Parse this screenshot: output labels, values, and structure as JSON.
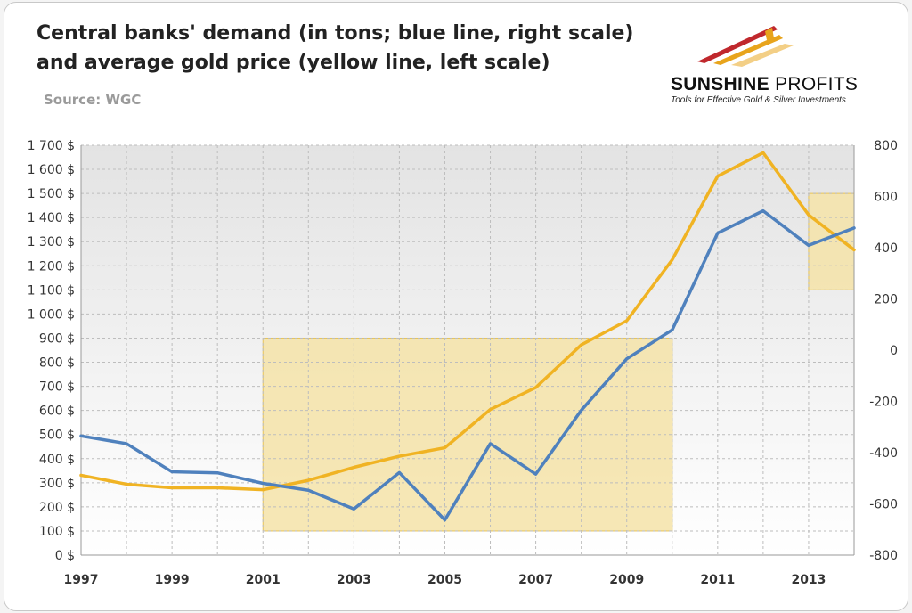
{
  "title_lines": [
    "Central banks' demand (in tons;  blue line, right scale)",
    "and average gold price (yellow line, left scale)"
  ],
  "source": "Source: WGC",
  "logo": {
    "brand_part1": "SUNSHINE",
    "brand_part2": "PROFITS",
    "tagline": "Tools for Effective Gold & Silver Investments",
    "colors": {
      "red": "#c0282d",
      "gold": "#e8a41c",
      "light": "#f3cf86"
    }
  },
  "chart_data": {
    "type": "line",
    "title": "Central banks' demand (in tons; blue line, right scale) and average gold price (yellow line, left scale)",
    "x": [
      1997,
      1998,
      1999,
      2000,
      2001,
      2002,
      2003,
      2004,
      2005,
      2006,
      2007,
      2008,
      2009,
      2010,
      2011,
      2012,
      2013,
      2014
    ],
    "x_tick_labels": [
      "1997",
      "1999",
      "2001",
      "2003",
      "2005",
      "2007",
      "2009",
      "2011",
      "2013"
    ],
    "left_axis": {
      "ylim": [
        0,
        1700
      ],
      "tick_labels": [
        "0 $",
        "100 $",
        "200 $",
        "300 $",
        "400 $",
        "500 $",
        "600 $",
        "700 $",
        "800 $",
        "900 $",
        "1 000 $",
        "1 100 $",
        "1 200 $",
        "1 300 $",
        "1 400 $",
        "1 500 $",
        "1 600 $",
        "1 700 $"
      ]
    },
    "right_axis": {
      "ylim": [
        -800,
        800
      ],
      "tick_labels": [
        "-800",
        "-600",
        "-400",
        "-200",
        "0",
        "200",
        "400",
        "600",
        "800"
      ]
    },
    "series": [
      {
        "name": "Average gold price",
        "axis": "left",
        "color": "#f0b323",
        "values": [
          331,
          294,
          279,
          279,
          271,
          310,
          364,
          410,
          445,
          604,
          695,
          872,
          972,
          1225,
          1572,
          1669,
          1411,
          1266
        ]
      },
      {
        "name": "Central banks' demand",
        "axis": "right",
        "color": "#4f81bd",
        "values": [
          -335,
          -365,
          -475,
          -479,
          -520,
          -547,
          -620,
          -478,
          -663,
          -365,
          -484,
          -235,
          -34,
          79,
          457,
          544,
          409,
          477
        ]
      }
    ],
    "highlight_regions": [
      {
        "x_range": [
          2001,
          2010
        ],
        "left_y_range": [
          100,
          900
        ],
        "color": "#f5e3a8"
      },
      {
        "x_range": [
          2013,
          2014
        ],
        "left_y_range": [
          1100,
          1500
        ],
        "color": "#f5e3a8"
      }
    ],
    "grid": true,
    "plot_background": "gradient grey"
  }
}
